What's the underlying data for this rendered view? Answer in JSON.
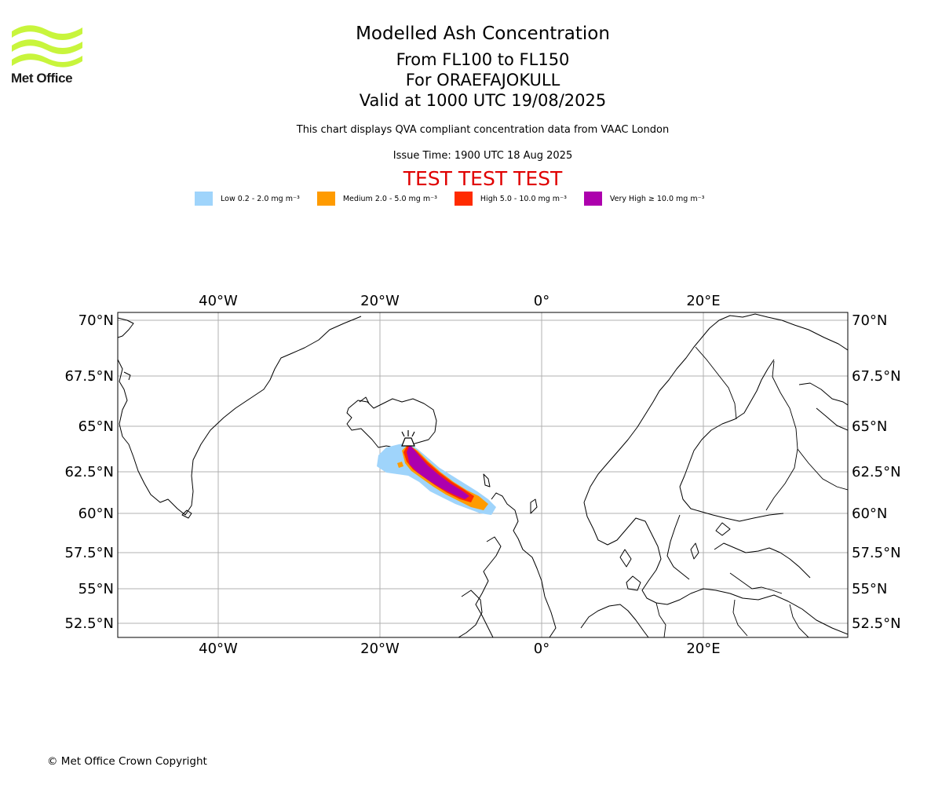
{
  "logo": {
    "text": "Met Office"
  },
  "title": {
    "main": "Modelled Ash Concentration",
    "levels": "From FL100 to FL150",
    "volcano": "For ORAEFAJOKULL",
    "valid": "Valid at 1000 UTC 19/08/2025"
  },
  "subtitle": "This chart displays QVA compliant concentration data from VAAC London",
  "issue_time": "Issue Time: 1900 UTC 18 Aug 2025",
  "test_banner": "TEST TEST TEST",
  "legend": [
    {
      "label": "Low 0.2 - 2.0 mg m⁻³",
      "color": "#9fd4fb"
    },
    {
      "label": "Medium 2.0 - 5.0 mg m⁻³",
      "color": "#ff9b00"
    },
    {
      "label": "High 5.0 - 10.0 mg m⁻³",
      "color": "#ff2b00"
    },
    {
      "label": "Very High ≥ 10.0 mg m⁻³",
      "color": "#ad00ad"
    }
  ],
  "map": {
    "lon_labels": [
      "40°W",
      "20°W",
      "0°",
      "20°E"
    ],
    "lat_labels": [
      "70°N",
      "67.5°N",
      "65°N",
      "62.5°N",
      "60°N",
      "57.5°N",
      "55°N",
      "52.5°N"
    ]
  },
  "copyright": "© Met Office Crown Copyright"
}
